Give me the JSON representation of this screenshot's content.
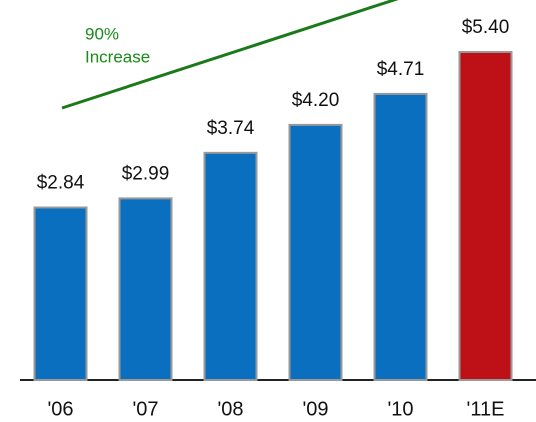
{
  "chart_data": {
    "type": "bar",
    "categories": [
      "'06",
      "'07",
      "'08",
      "'09",
      "'10",
      "'11E"
    ],
    "values": [
      2.84,
      2.99,
      3.74,
      4.2,
      4.71,
      5.4
    ],
    "value_labels": [
      "$2.84",
      "$2.99",
      "$3.74",
      "$4.20",
      "$4.71",
      "$5.40"
    ],
    "colors": [
      "#0a6fbf",
      "#0a6fbf",
      "#0a6fbf",
      "#0a6fbf",
      "#0a6fbf",
      "#be1017"
    ],
    "annotations": [
      "90%",
      "Increase"
    ],
    "annotation_color": "#1a8a1a"
  }
}
